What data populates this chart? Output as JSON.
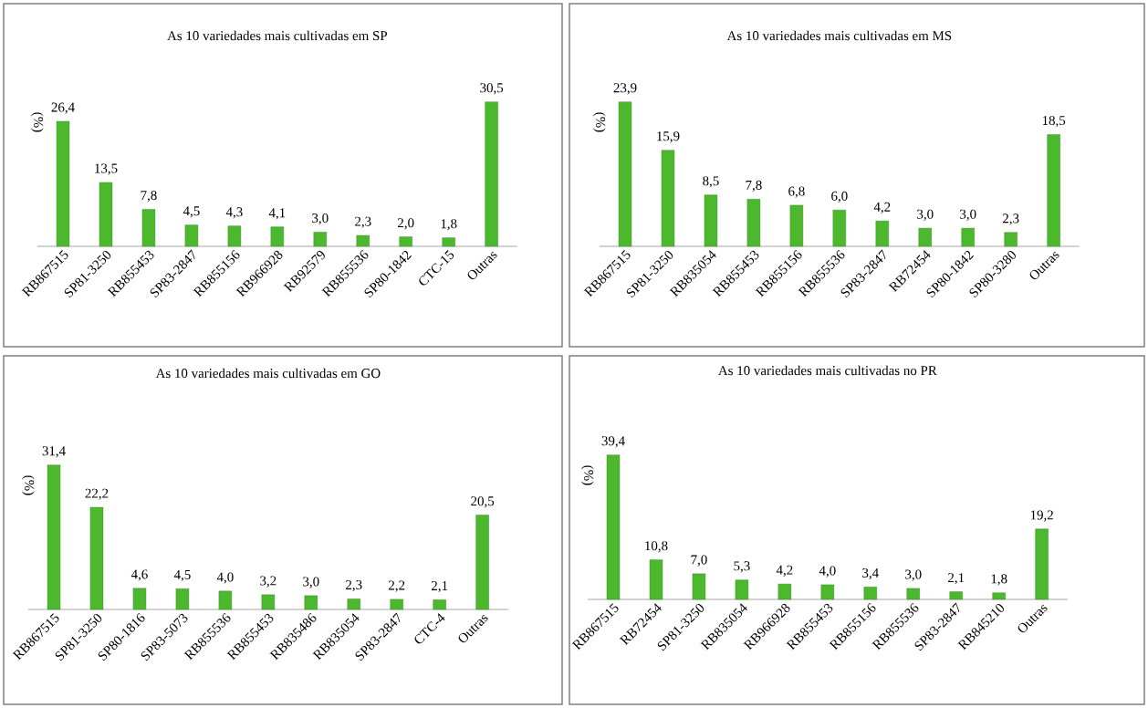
{
  "chart_data": [
    {
      "type": "bar",
      "title": "As 10 variedades mais cultivadas em SP",
      "ylabel": "(%)",
      "color": "#4cb82e",
      "categories": [
        "RB867515",
        "SP81-3250",
        "RB855453",
        "SP83-2847",
        "RB855156",
        "RB966928",
        "RB92579",
        "RB855536",
        "SP80-1842",
        "CTC-15",
        "Outras"
      ],
      "values": [
        26.4,
        13.5,
        7.8,
        4.5,
        4.3,
        4.1,
        3.0,
        2.3,
        2.0,
        1.8,
        30.5
      ],
      "value_labels": [
        "26,4",
        "13,5",
        "7,8",
        "4,5",
        "4,3",
        "4,1",
        "3,0",
        "2,3",
        "2,0",
        "1,8",
        "30,5"
      ]
    },
    {
      "type": "bar",
      "title": "As 10 variedades mais cultivadas em MS",
      "ylabel": "(%)",
      "color": "#4cb82e",
      "categories": [
        "RB867515",
        "SP81-3250",
        "RB835054",
        "RB855453",
        "RB855156",
        "RB855536",
        "SP83-2847",
        "RB72454",
        "SP80-1842",
        "SP80-3280",
        "Outras"
      ],
      "values": [
        23.9,
        15.9,
        8.5,
        7.8,
        6.8,
        6.0,
        4.2,
        3.0,
        3.0,
        2.3,
        18.5
      ],
      "value_labels": [
        "23,9",
        "15,9",
        "8,5",
        "7,8",
        "6,8",
        "6,0",
        "4,2",
        "3,0",
        "3,0",
        "2,3",
        "18,5"
      ]
    },
    {
      "type": "bar",
      "title": "As 10 variedades mais cultivadas em GO",
      "ylabel": "(%)",
      "color": "#4cb82e",
      "categories": [
        "RB867515",
        "SP81-3250",
        "SP80-1816",
        "SP83-5073",
        "RB855536",
        "RB855453",
        "RB835486",
        "RB835054",
        "SP83-2847",
        "CTC-4",
        "Outras"
      ],
      "values": [
        31.4,
        22.2,
        4.6,
        4.5,
        4.0,
        3.2,
        3.0,
        2.3,
        2.2,
        2.1,
        20.5
      ],
      "value_labels": [
        "31,4",
        "22,2",
        "4,6",
        "4,5",
        "4,0",
        "3,2",
        "3,0",
        "2,3",
        "2,2",
        "2,1",
        "20,5"
      ]
    },
    {
      "type": "bar",
      "title": "As 10 variedades mais cultivadas no PR",
      "ylabel": "(%)",
      "color": "#4cb82e",
      "categories": [
        "RB867515",
        "RB72454",
        "SP81-3250",
        "RB835054",
        "RB966928",
        "RB855453",
        "RB855156",
        "RB855536",
        "SP83-2847",
        "RB845210",
        "Outras"
      ],
      "values": [
        39.4,
        10.8,
        7.0,
        5.3,
        4.2,
        4.0,
        3.4,
        3.0,
        2.1,
        1.8,
        19.2
      ],
      "value_labels": [
        "39,4",
        "10,8",
        "7,0",
        "5,3",
        "4,2",
        "4,0",
        "3,4",
        "3,0",
        "2,1",
        "1,8",
        "19,2"
      ]
    }
  ]
}
